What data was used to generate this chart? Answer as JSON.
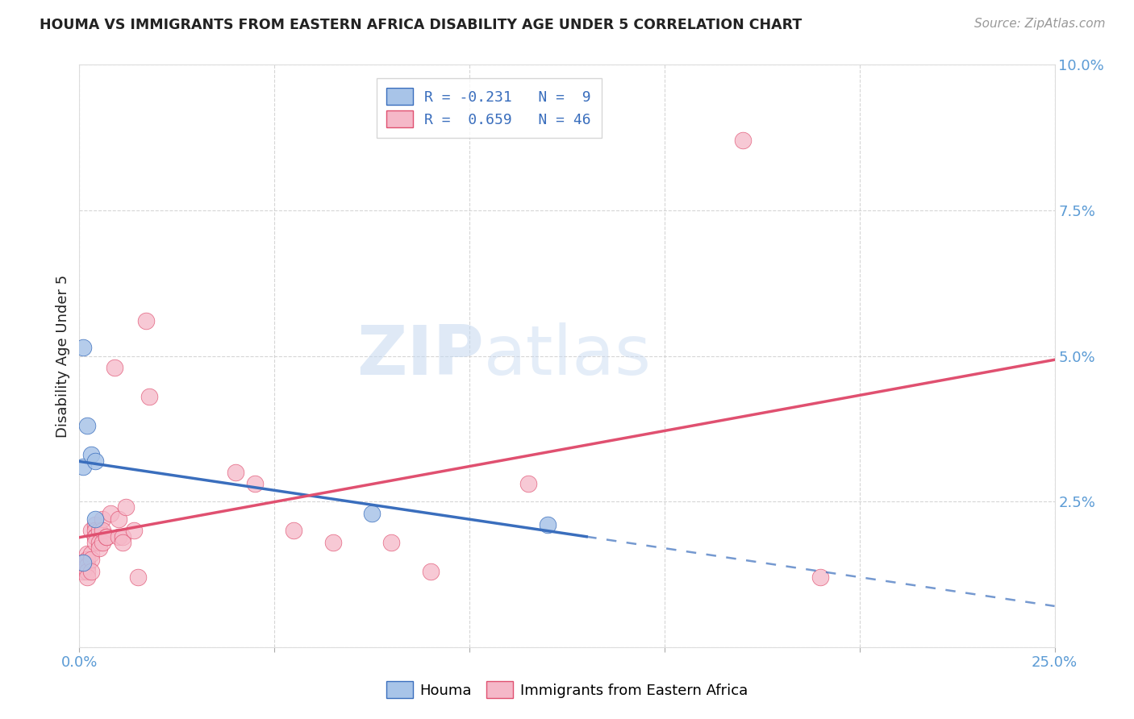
{
  "title": "HOUMA VS IMMIGRANTS FROM EASTERN AFRICA DISABILITY AGE UNDER 5 CORRELATION CHART",
  "source": "Source: ZipAtlas.com",
  "xlabel": "",
  "ylabel": "Disability Age Under 5",
  "xlim": [
    0.0,
    0.25
  ],
  "ylim": [
    0.0,
    0.1
  ],
  "xticks": [
    0.0,
    0.05,
    0.1,
    0.15,
    0.2,
    0.25
  ],
  "yticks": [
    0.0,
    0.025,
    0.05,
    0.075,
    0.1
  ],
  "ytick_labels": [
    "",
    "2.5%",
    "5.0%",
    "7.5%",
    "10.0%"
  ],
  "xtick_labels": [
    "0.0%",
    "",
    "",
    "",
    "",
    "25.0%"
  ],
  "legend_houma_R": -0.231,
  "legend_houma_N": 9,
  "legend_imm_R": 0.659,
  "legend_imm_N": 46,
  "houma_color": "#a8c4e8",
  "imm_color": "#f5b8c8",
  "houma_line_color": "#3a6ebd",
  "imm_line_color": "#e05070",
  "watermark_zip": "ZIP",
  "watermark_atlas": "atlas",
  "houma_points": [
    [
      0.001,
      0.0515
    ],
    [
      0.001,
      0.031
    ],
    [
      0.001,
      0.0145
    ],
    [
      0.002,
      0.038
    ],
    [
      0.003,
      0.033
    ],
    [
      0.004,
      0.032
    ],
    [
      0.004,
      0.022
    ],
    [
      0.075,
      0.023
    ],
    [
      0.12,
      0.021
    ]
  ],
  "imm_points": [
    [
      0.001,
      0.0145
    ],
    [
      0.001,
      0.0145
    ],
    [
      0.001,
      0.014
    ],
    [
      0.001,
      0.013
    ],
    [
      0.002,
      0.016
    ],
    [
      0.002,
      0.015
    ],
    [
      0.002,
      0.014
    ],
    [
      0.002,
      0.013
    ],
    [
      0.002,
      0.012
    ],
    [
      0.003,
      0.02
    ],
    [
      0.003,
      0.016
    ],
    [
      0.003,
      0.015
    ],
    [
      0.003,
      0.013
    ],
    [
      0.004,
      0.021
    ],
    [
      0.004,
      0.02
    ],
    [
      0.004,
      0.019
    ],
    [
      0.004,
      0.019
    ],
    [
      0.004,
      0.018
    ],
    [
      0.005,
      0.02
    ],
    [
      0.005,
      0.018
    ],
    [
      0.005,
      0.017
    ],
    [
      0.006,
      0.022
    ],
    [
      0.006,
      0.02
    ],
    [
      0.006,
      0.018
    ],
    [
      0.007,
      0.019
    ],
    [
      0.007,
      0.019
    ],
    [
      0.008,
      0.023
    ],
    [
      0.009,
      0.048
    ],
    [
      0.01,
      0.022
    ],
    [
      0.01,
      0.019
    ],
    [
      0.011,
      0.019
    ],
    [
      0.011,
      0.018
    ],
    [
      0.012,
      0.024
    ],
    [
      0.014,
      0.02
    ],
    [
      0.015,
      0.012
    ],
    [
      0.017,
      0.056
    ],
    [
      0.018,
      0.043
    ],
    [
      0.04,
      0.03
    ],
    [
      0.045,
      0.028
    ],
    [
      0.055,
      0.02
    ],
    [
      0.065,
      0.018
    ],
    [
      0.08,
      0.018
    ],
    [
      0.09,
      0.013
    ],
    [
      0.115,
      0.028
    ],
    [
      0.17,
      0.087
    ],
    [
      0.19,
      0.012
    ]
  ],
  "background_color": "#ffffff",
  "grid_color": "#cccccc",
  "title_color": "#222222",
  "axis_color": "#5b9bd5",
  "legend_text_color": "#3a6ebd",
  "figsize": [
    14.06,
    8.92
  ],
  "dpi": 100
}
